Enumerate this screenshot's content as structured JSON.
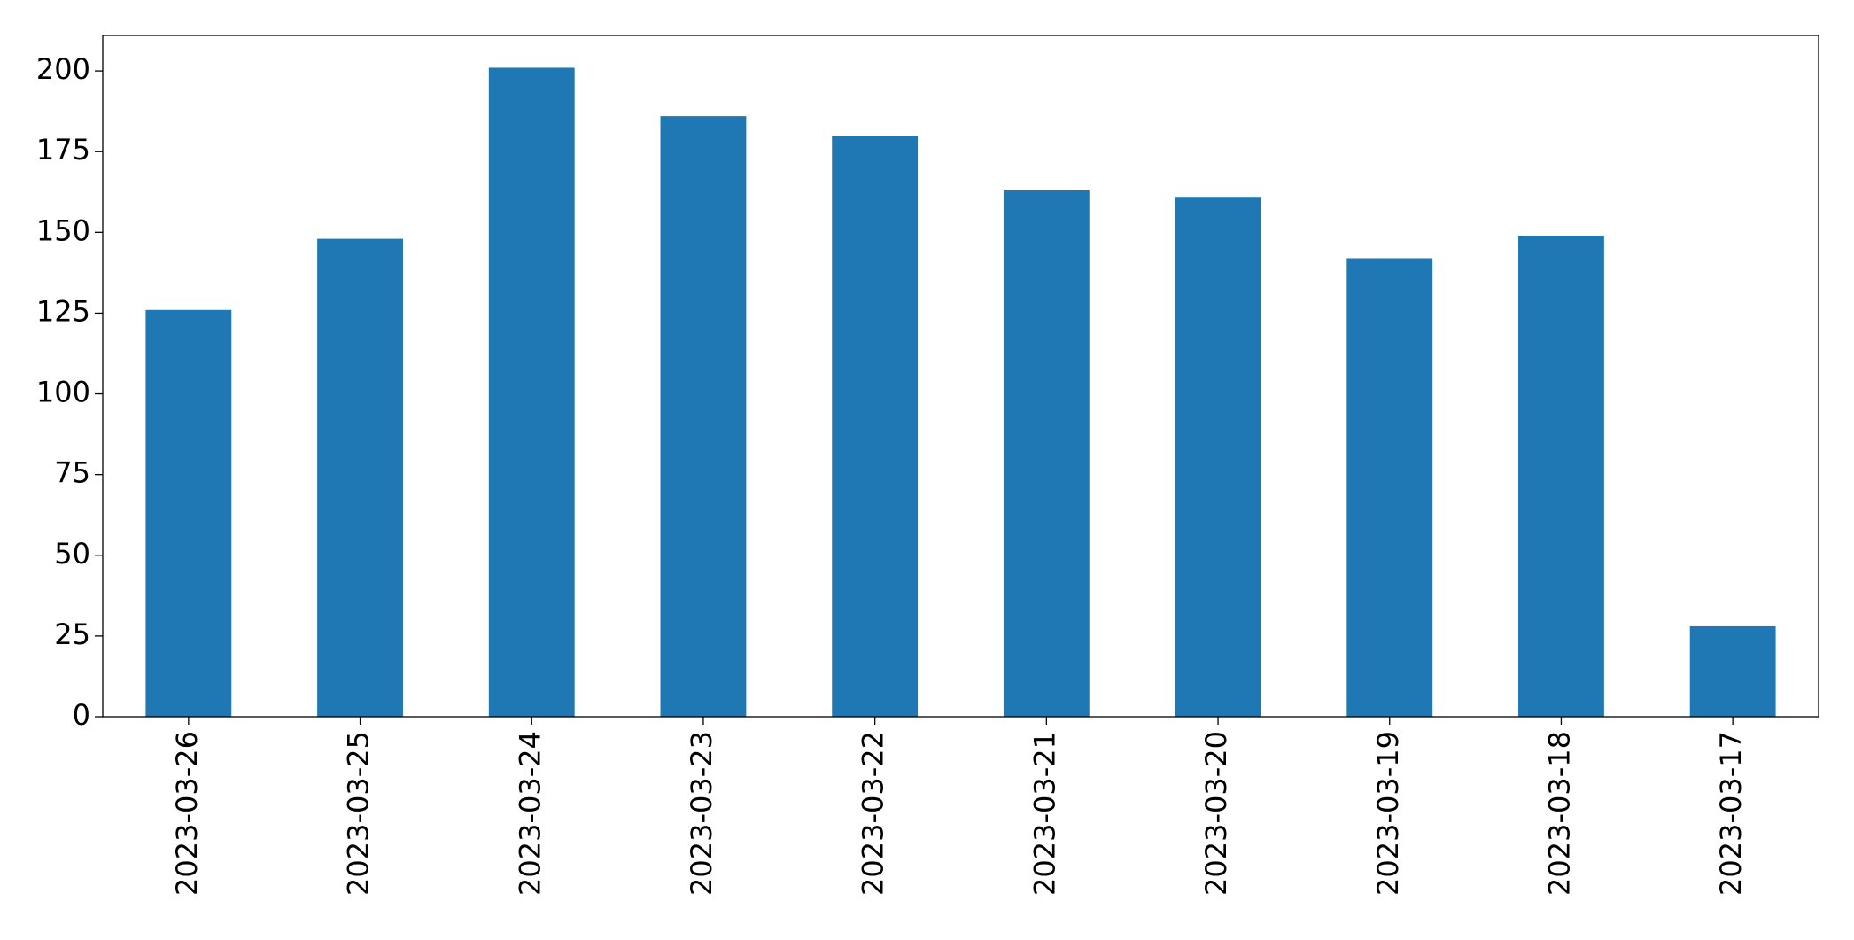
{
  "chart_data": {
    "type": "bar",
    "categories": [
      "2023-03-26",
      "2023-03-25",
      "2023-03-24",
      "2023-03-23",
      "2023-03-22",
      "2023-03-21",
      "2023-03-20",
      "2023-03-19",
      "2023-03-18",
      "2023-03-17"
    ],
    "values": [
      126,
      148,
      201,
      186,
      180,
      163,
      161,
      142,
      149,
      28
    ],
    "color": "#1f77b4",
    "ylim": [
      0,
      211
    ],
    "yticks": [
      0,
      25,
      50,
      75,
      100,
      125,
      150,
      175,
      200
    ],
    "grid": false
  }
}
